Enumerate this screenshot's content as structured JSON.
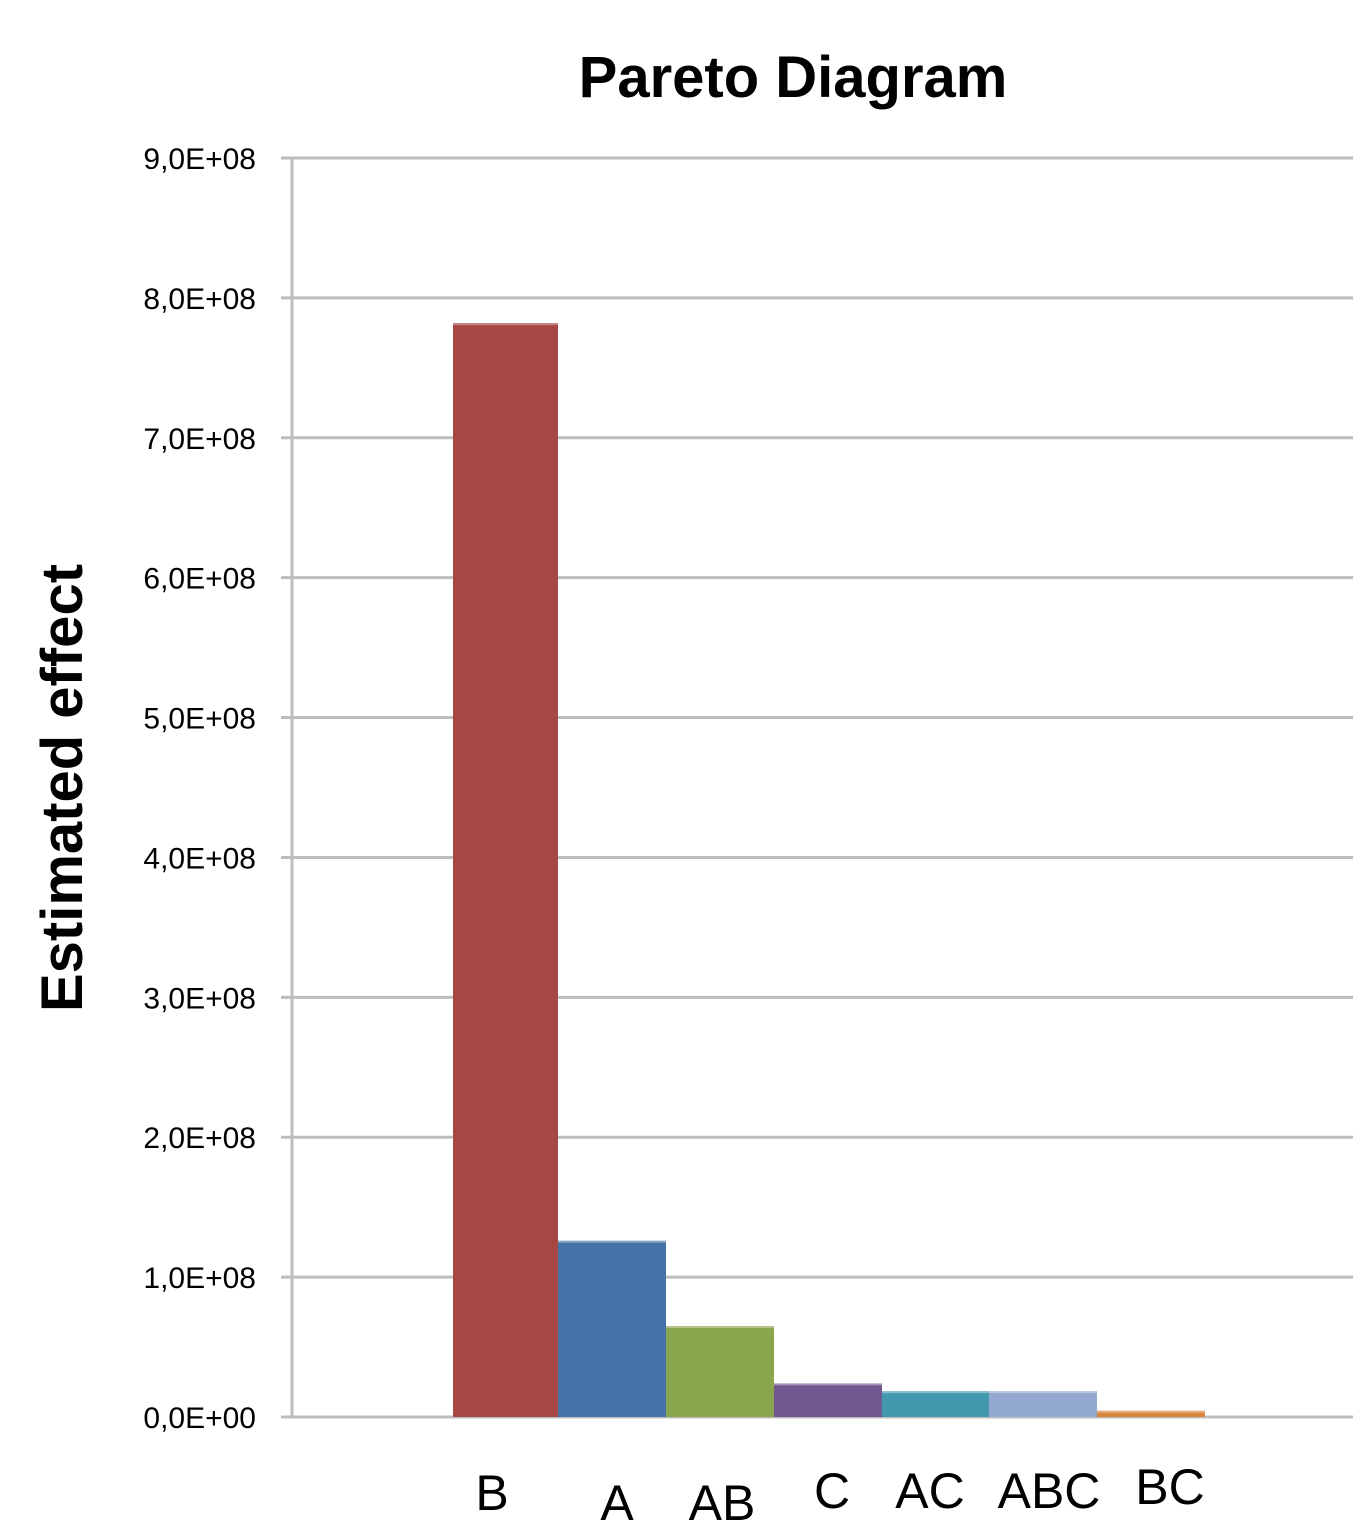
{
  "chart_data": {
    "type": "bar",
    "title": "Pareto Diagram",
    "xlabel": "",
    "ylabel": "Estimated effect",
    "ylim": [
      0,
      900000000
    ],
    "y_ticks": [
      "0,0E+00",
      "1,0E+08",
      "2,0E+08",
      "3,0E+08",
      "4,0E+08",
      "5,0E+08",
      "6,0E+08",
      "7,0E+08",
      "8,0E+08",
      "9,0E+08"
    ],
    "y_tick_values": [
      0,
      100000000,
      200000000,
      300000000,
      400000000,
      500000000,
      600000000,
      700000000,
      800000000,
      900000000
    ],
    "grid": true,
    "legend": "none",
    "categories": [
      "B",
      "A",
      "AB",
      "C",
      "AC",
      "ABC",
      "BC"
    ],
    "values": [
      782000000,
      126000000,
      65000000,
      24000000,
      18500000,
      18500000,
      4500000
    ],
    "colors": [
      "#A64744",
      "#4573A7",
      "#89A54E",
      "#71588F",
      "#4198AF",
      "#93A9CF",
      "#DB843D"
    ]
  }
}
